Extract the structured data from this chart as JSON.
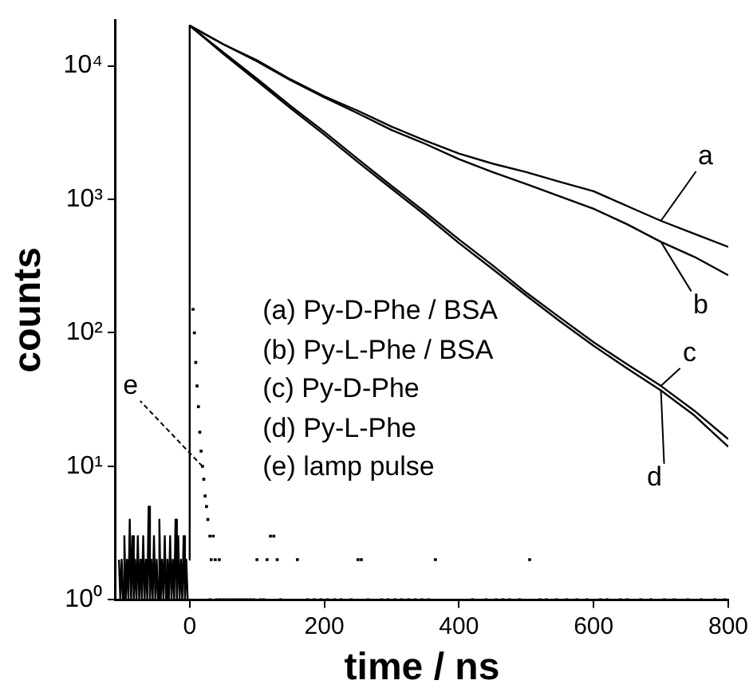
{
  "chart_data": {
    "type": "line",
    "xlabel": "time / ns",
    "ylabel": "counts",
    "xlim": [
      -110,
      800
    ],
    "xticks": [
      0,
      200,
      400,
      600,
      800
    ],
    "ylim": [
      1,
      22000
    ],
    "yticks": [
      {
        "value": 1,
        "label": "10⁰"
      },
      {
        "value": 10,
        "label": "10¹"
      },
      {
        "value": 100,
        "label": "10²"
      },
      {
        "value": 1000,
        "label": "10³"
      },
      {
        "value": 10000,
        "label": "10⁴"
      }
    ],
    "log": "y",
    "grid": false,
    "marker": "none",
    "line_style": "solid",
    "series": [
      {
        "name": "a",
        "color": "#000000",
        "x": [
          -1,
          0,
          50,
          100,
          150,
          200,
          250,
          300,
          350,
          400,
          450,
          500,
          550,
          600,
          650,
          700,
          750,
          800
        ],
        "values": [
          2,
          20000,
          14500,
          11000,
          7900,
          5900,
          4600,
          3500,
          2750,
          2200,
          1850,
          1600,
          1350,
          1150,
          890,
          690,
          550,
          440
        ]
      },
      {
        "name": "b",
        "color": "#000000",
        "x": [
          0,
          50,
          100,
          150,
          200,
          250,
          300,
          350,
          400,
          450,
          500,
          550,
          600,
          650,
          700,
          750,
          800
        ],
        "values": [
          20000,
          14500,
          10800,
          7800,
          5800,
          4400,
          3300,
          2600,
          2000,
          1600,
          1300,
          1050,
          850,
          650,
          480,
          370,
          270
        ]
      },
      {
        "name": "c",
        "color": "#000000",
        "x": [
          0,
          50,
          100,
          150,
          200,
          250,
          300,
          350,
          400,
          450,
          500,
          550,
          600,
          650,
          700,
          750,
          800
        ],
        "values": [
          20000,
          12600,
          8000,
          5000,
          3200,
          2000,
          1260,
          800,
          500,
          320,
          200,
          130,
          85,
          58,
          40,
          26,
          16
        ]
      },
      {
        "name": "d",
        "color": "#000000",
        "x": [
          0,
          50,
          100,
          150,
          200,
          250,
          300,
          350,
          400,
          450,
          500,
          550,
          600,
          650,
          700,
          750,
          800
        ],
        "values": [
          20000,
          12300,
          7700,
          4800,
          3050,
          1900,
          1200,
          760,
          470,
          300,
          190,
          122,
          80,
          54,
          37,
          24,
          14
        ]
      },
      {
        "name": "e",
        "type": "scatter",
        "marker": "square",
        "color": "#000000",
        "x": [
          5,
          7,
          9,
          11,
          13,
          15,
          17,
          19,
          21,
          23,
          25,
          27,
          30,
          35,
          120,
          125,
          130,
          32,
          38,
          44,
          100,
          115,
          160,
          250,
          255,
          365,
          505,
          30,
          40,
          45,
          50,
          55,
          60,
          65,
          70,
          75,
          80,
          85,
          90,
          95,
          105,
          110,
          135,
          175,
          185,
          195,
          205,
          215,
          225,
          240,
          265,
          285,
          295,
          305,
          315,
          325,
          335,
          345,
          355,
          420,
          440,
          455,
          465,
          475,
          490,
          520,
          530,
          545,
          560,
          575,
          590,
          610,
          620,
          640,
          650,
          670,
          685,
          705,
          720,
          740,
          760,
          780,
          795
        ],
        "values": [
          150,
          100,
          60,
          40,
          28,
          18,
          13,
          10,
          8,
          6,
          5,
          4,
          3,
          3,
          3,
          3,
          2,
          2,
          2,
          2,
          2,
          2,
          2,
          2,
          2,
          2,
          2,
          1,
          1,
          1,
          1,
          1,
          1,
          1,
          1,
          1,
          1,
          1,
          1,
          1,
          1,
          1,
          1,
          1,
          1,
          1,
          1,
          1,
          1,
          1,
          1,
          1,
          1,
          1,
          1,
          1,
          1,
          1,
          1,
          1,
          1,
          1,
          1,
          1,
          1,
          1,
          1,
          1,
          1,
          1,
          1,
          1,
          1,
          1,
          1,
          1,
          1,
          1,
          1,
          1,
          1,
          1,
          1
        ]
      },
      {
        "color": "#000000",
        "x": [
          -105,
          -103,
          -101,
          -99,
          -97,
          -95,
          -93,
          -91,
          -89,
          -87,
          -85,
          -83,
          -81,
          -79,
          -77,
          -75,
          -73,
          -71,
          -69,
          -67,
          -65,
          -63,
          -61,
          -59,
          -57,
          -55,
          -53,
          -51,
          -49,
          -47,
          -45,
          -43,
          -41,
          -39,
          -37,
          -35,
          -33,
          -31,
          -29,
          -27,
          -25,
          -23,
          -21,
          -19,
          -17,
          -15,
          -13,
          -11,
          -9,
          -7,
          -5,
          -3
        ],
        "values": [
          2,
          1,
          2,
          1,
          3,
          1,
          2,
          1,
          4,
          1,
          3,
          1,
          2,
          1,
          3,
          1,
          2,
          1,
          3,
          1,
          2,
          1,
          5,
          1,
          2,
          1,
          3,
          1,
          2,
          1,
          4,
          1,
          2,
          1,
          3,
          1,
          2,
          1,
          3,
          1,
          2,
          1,
          4,
          1,
          3,
          1,
          2,
          1,
          3,
          1,
          2,
          1
        ]
      }
    ],
    "annotations": [
      "(a) Py-D-Phe / BSA",
      "(b) Py-L-Phe / BSA",
      "(c) Py-D-Phe",
      "(d) Py-L-Phe",
      "(e) lamp pulse"
    ]
  }
}
